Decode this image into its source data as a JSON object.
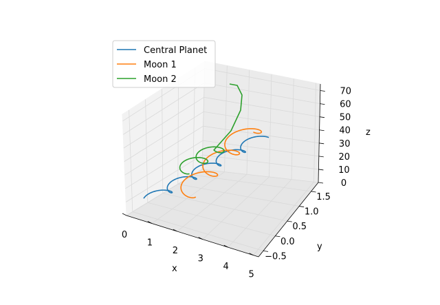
{
  "chart_data": {
    "type": "line",
    "projection": "3d",
    "xlabel": "x",
    "ylabel": "y",
    "zlabel": "z",
    "xlim": [
      0,
      5.2
    ],
    "ylim": [
      -0.7,
      1.8
    ],
    "zlim": [
      0,
      75
    ],
    "x_ticks": [
      "0",
      "1",
      "2",
      "3",
      "4",
      "5"
    ],
    "y_ticks": [
      "−0.5",
      "0.0",
      "0.5",
      "1.0",
      "1.5"
    ],
    "z_ticks": [
      "0",
      "10",
      "20",
      "30",
      "40",
      "50",
      "60",
      "70"
    ],
    "grid": true,
    "legend_position": "upper-left",
    "series": [
      {
        "name": "Central Planet",
        "color": "#1f77b4"
      },
      {
        "name": "Moon 1",
        "color": "#ff7f0e"
      },
      {
        "name": "Moon 2",
        "color": "#2ca02c"
      }
    ]
  }
}
